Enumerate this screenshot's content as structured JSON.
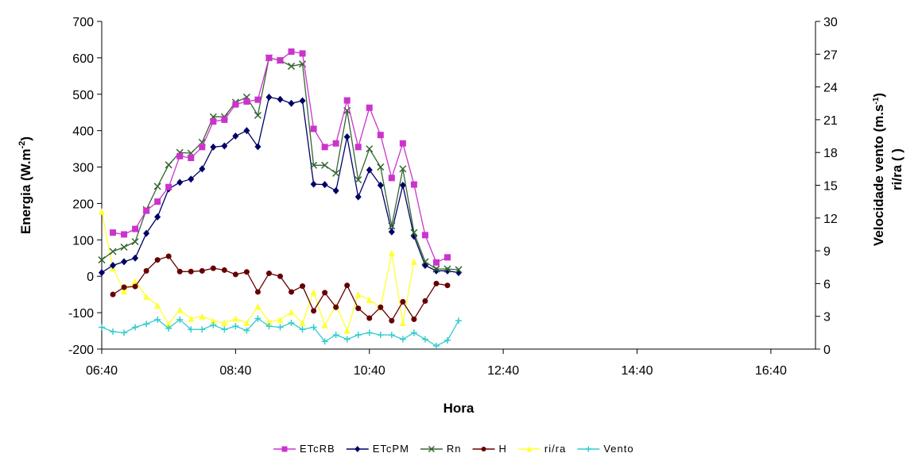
{
  "chart_data": {
    "type": "line",
    "xlabel": "Hora",
    "ylabel_left": "Energia (W.m-2)",
    "ylabel_right_line1": "Velocidade vento (m.s-1)",
    "ylabel_right_line2": "ri/ra ( )",
    "xlim": [
      400,
      1040
    ],
    "x_ticks": [
      400,
      520,
      640,
      760,
      880,
      1000
    ],
    "x_tick_labels": [
      "06:40",
      "08:40",
      "10:40",
      "12:40",
      "14:40",
      "16:40"
    ],
    "ylim_left": [
      -200,
      700
    ],
    "yticks_left": [
      -200,
      -100,
      0,
      100,
      200,
      300,
      400,
      500,
      600,
      700
    ],
    "ylim_right": [
      0,
      30
    ],
    "yticks_right": [
      0,
      3,
      6,
      9,
      12,
      15,
      18,
      21,
      24,
      27,
      30
    ],
    "grid": false,
    "legend_position": "bottom",
    "series": [
      {
        "name": "ETcRB",
        "axis": "left",
        "color": "#cc33cc",
        "marker": "square",
        "points": [
          [
            410,
            120
          ],
          [
            420,
            115
          ],
          [
            430,
            130
          ],
          [
            440,
            180
          ],
          [
            450,
            205
          ],
          [
            460,
            245
          ],
          [
            470,
            330
          ],
          [
            480,
            325
          ],
          [
            490,
            355
          ],
          [
            500,
            425
          ],
          [
            510,
            430
          ],
          [
            520,
            472
          ],
          [
            530,
            480
          ],
          [
            540,
            485
          ],
          [
            550,
            600
          ],
          [
            560,
            593
          ],
          [
            570,
            617
          ],
          [
            580,
            612
          ],
          [
            590,
            405
          ],
          [
            600,
            355
          ],
          [
            610,
            365
          ],
          [
            620,
            483
          ],
          [
            630,
            355
          ],
          [
            640,
            463
          ],
          [
            650,
            388
          ],
          [
            660,
            270
          ],
          [
            670,
            365
          ],
          [
            680,
            252
          ],
          [
            690,
            113
          ],
          [
            700,
            38
          ],
          [
            710,
            52
          ]
        ]
      },
      {
        "name": "ETcPM",
        "axis": "left",
        "color": "#000066",
        "marker": "diamond",
        "points": [
          [
            400,
            10
          ],
          [
            410,
            30
          ],
          [
            420,
            40
          ],
          [
            430,
            50
          ],
          [
            440,
            118
          ],
          [
            450,
            163
          ],
          [
            460,
            240
          ],
          [
            470,
            258
          ],
          [
            480,
            267
          ],
          [
            490,
            295
          ],
          [
            500,
            355
          ],
          [
            510,
            358
          ],
          [
            520,
            385
          ],
          [
            530,
            400
          ],
          [
            540,
            356
          ],
          [
            550,
            492
          ],
          [
            560,
            486
          ],
          [
            570,
            475
          ],
          [
            580,
            482
          ],
          [
            590,
            253
          ],
          [
            600,
            252
          ],
          [
            610,
            235
          ],
          [
            620,
            383
          ],
          [
            630,
            218
          ],
          [
            640,
            292
          ],
          [
            650,
            250
          ],
          [
            660,
            122
          ],
          [
            670,
            250
          ],
          [
            680,
            110
          ],
          [
            690,
            30
          ],
          [
            700,
            15
          ],
          [
            710,
            15
          ],
          [
            720,
            10
          ]
        ]
      },
      {
        "name": "Rn",
        "axis": "left",
        "color": "#336633",
        "marker": "x",
        "points": [
          [
            400,
            45
          ],
          [
            410,
            68
          ],
          [
            420,
            80
          ],
          [
            430,
            95
          ],
          [
            440,
            183
          ],
          [
            450,
            247
          ],
          [
            460,
            306
          ],
          [
            470,
            340
          ],
          [
            480,
            338
          ],
          [
            490,
            368
          ],
          [
            500,
            438
          ],
          [
            510,
            438
          ],
          [
            520,
            478
          ],
          [
            530,
            492
          ],
          [
            540,
            442
          ],
          [
            550,
            600
          ],
          [
            560,
            593
          ],
          [
            570,
            577
          ],
          [
            580,
            583
          ],
          [
            590,
            305
          ],
          [
            600,
            305
          ],
          [
            610,
            283
          ],
          [
            620,
            455
          ],
          [
            630,
            265
          ],
          [
            640,
            350
          ],
          [
            650,
            300
          ],
          [
            660,
            138
          ],
          [
            670,
            295
          ],
          [
            680,
            120
          ],
          [
            690,
            40
          ],
          [
            700,
            20
          ],
          [
            710,
            20
          ],
          [
            720,
            18
          ]
        ]
      },
      {
        "name": "H",
        "axis": "left",
        "color": "#660000",
        "marker": "circle",
        "points": [
          [
            410,
            -50
          ],
          [
            420,
            -30
          ],
          [
            430,
            -28
          ],
          [
            440,
            15
          ],
          [
            450,
            45
          ],
          [
            460,
            55
          ],
          [
            470,
            13
          ],
          [
            480,
            13
          ],
          [
            490,
            15
          ],
          [
            500,
            22
          ],
          [
            510,
            17
          ],
          [
            520,
            5
          ],
          [
            530,
            12
          ],
          [
            540,
            -43
          ],
          [
            550,
            8
          ],
          [
            560,
            0
          ],
          [
            570,
            -43
          ],
          [
            580,
            -27
          ],
          [
            590,
            -95
          ],
          [
            600,
            -45
          ],
          [
            610,
            -85
          ],
          [
            620,
            -25
          ],
          [
            630,
            -88
          ],
          [
            640,
            -115
          ],
          [
            650,
            -85
          ],
          [
            660,
            -122
          ],
          [
            670,
            -70
          ],
          [
            680,
            -118
          ],
          [
            690,
            -68
          ],
          [
            700,
            -20
          ],
          [
            710,
            -25
          ]
        ]
      },
      {
        "name": "ri/ra",
        "axis": "right",
        "color": "#ffff33",
        "marker": "triangle",
        "points": [
          [
            400,
            12.6
          ],
          [
            410,
            7.4
          ],
          [
            420,
            5.3
          ],
          [
            430,
            6.2
          ],
          [
            440,
            4.8
          ],
          [
            450,
            4.0
          ],
          [
            460,
            2.3
          ],
          [
            470,
            3.6
          ],
          [
            480,
            2.8
          ],
          [
            490,
            3.0
          ],
          [
            500,
            2.6
          ],
          [
            510,
            2.4
          ],
          [
            520,
            2.8
          ],
          [
            530,
            2.4
          ],
          [
            540,
            3.9
          ],
          [
            550,
            2.5
          ],
          [
            560,
            2.7
          ],
          [
            570,
            3.4
          ],
          [
            580,
            2.4
          ],
          [
            590,
            5.2
          ],
          [
            600,
            2.2
          ],
          [
            610,
            4.0
          ],
          [
            620,
            1.7
          ],
          [
            630,
            5.0
          ],
          [
            640,
            4.5
          ],
          [
            650,
            3.8
          ],
          [
            660,
            8.8
          ],
          [
            670,
            2.4
          ],
          [
            680,
            8.0
          ]
        ]
      },
      {
        "name": "Vento",
        "axis": "right",
        "color": "#33cccc",
        "marker": "plus",
        "points": [
          [
            400,
            2.0
          ],
          [
            410,
            1.6
          ],
          [
            420,
            1.5
          ],
          [
            430,
            2.0
          ],
          [
            440,
            2.3
          ],
          [
            450,
            2.7
          ],
          [
            460,
            1.9
          ],
          [
            470,
            2.7
          ],
          [
            480,
            1.8
          ],
          [
            490,
            1.8
          ],
          [
            500,
            2.2
          ],
          [
            510,
            1.8
          ],
          [
            520,
            2.1
          ],
          [
            530,
            1.7
          ],
          [
            540,
            2.8
          ],
          [
            550,
            2.1
          ],
          [
            560,
            2.0
          ],
          [
            570,
            2.4
          ],
          [
            580,
            1.8
          ],
          [
            590,
            2.0
          ],
          [
            600,
            0.7
          ],
          [
            610,
            1.3
          ],
          [
            620,
            0.9
          ],
          [
            630,
            1.3
          ],
          [
            640,
            1.5
          ],
          [
            650,
            1.3
          ],
          [
            660,
            1.3
          ],
          [
            670,
            0.9
          ],
          [
            680,
            1.5
          ],
          [
            690,
            0.9
          ],
          [
            700,
            0.3
          ],
          [
            710,
            0.8
          ],
          [
            720,
            2.6
          ]
        ]
      }
    ]
  }
}
